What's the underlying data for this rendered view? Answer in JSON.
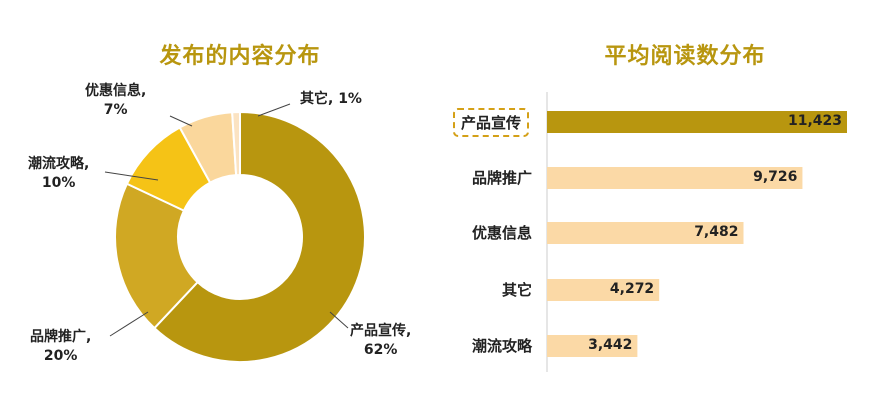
{
  "chart_data": [
    {
      "type": "pie",
      "title": "发布的内容分布",
      "donut": true,
      "slices": [
        {
          "label": "产品宣传,",
          "pct_label": "62%",
          "value": 62,
          "color": "#b8960f"
        },
        {
          "label": "品牌推广,",
          "pct_label": "20%",
          "value": 20,
          "color": "#d0a823"
        },
        {
          "label": "潮流攻略,",
          "pct_label": "10%",
          "value": 10,
          "color": "#f5c316"
        },
        {
          "label": "优惠信息,",
          "pct_label": "7%",
          "value": 7,
          "color": "#fad79c"
        },
        {
          "label": "其它, 1%",
          "pct_label": "",
          "value": 1,
          "color": "#fbe3c2"
        }
      ]
    },
    {
      "type": "bar",
      "orientation": "horizontal",
      "title": "平均阅读数分布",
      "categories": [
        "产品宣传",
        "品牌推广",
        "优惠信息",
        "其它",
        "潮流攻略"
      ],
      "values": [
        11423,
        9726,
        7482,
        4272,
        3442
      ],
      "value_labels": [
        "11,423",
        "9,726",
        "7,482",
        "4,272",
        "3,442"
      ],
      "highlight_index": 0,
      "colors": {
        "highlight": "#b8960f",
        "normal": "#fbd9a6"
      },
      "xlim": [
        0,
        11423
      ]
    }
  ]
}
